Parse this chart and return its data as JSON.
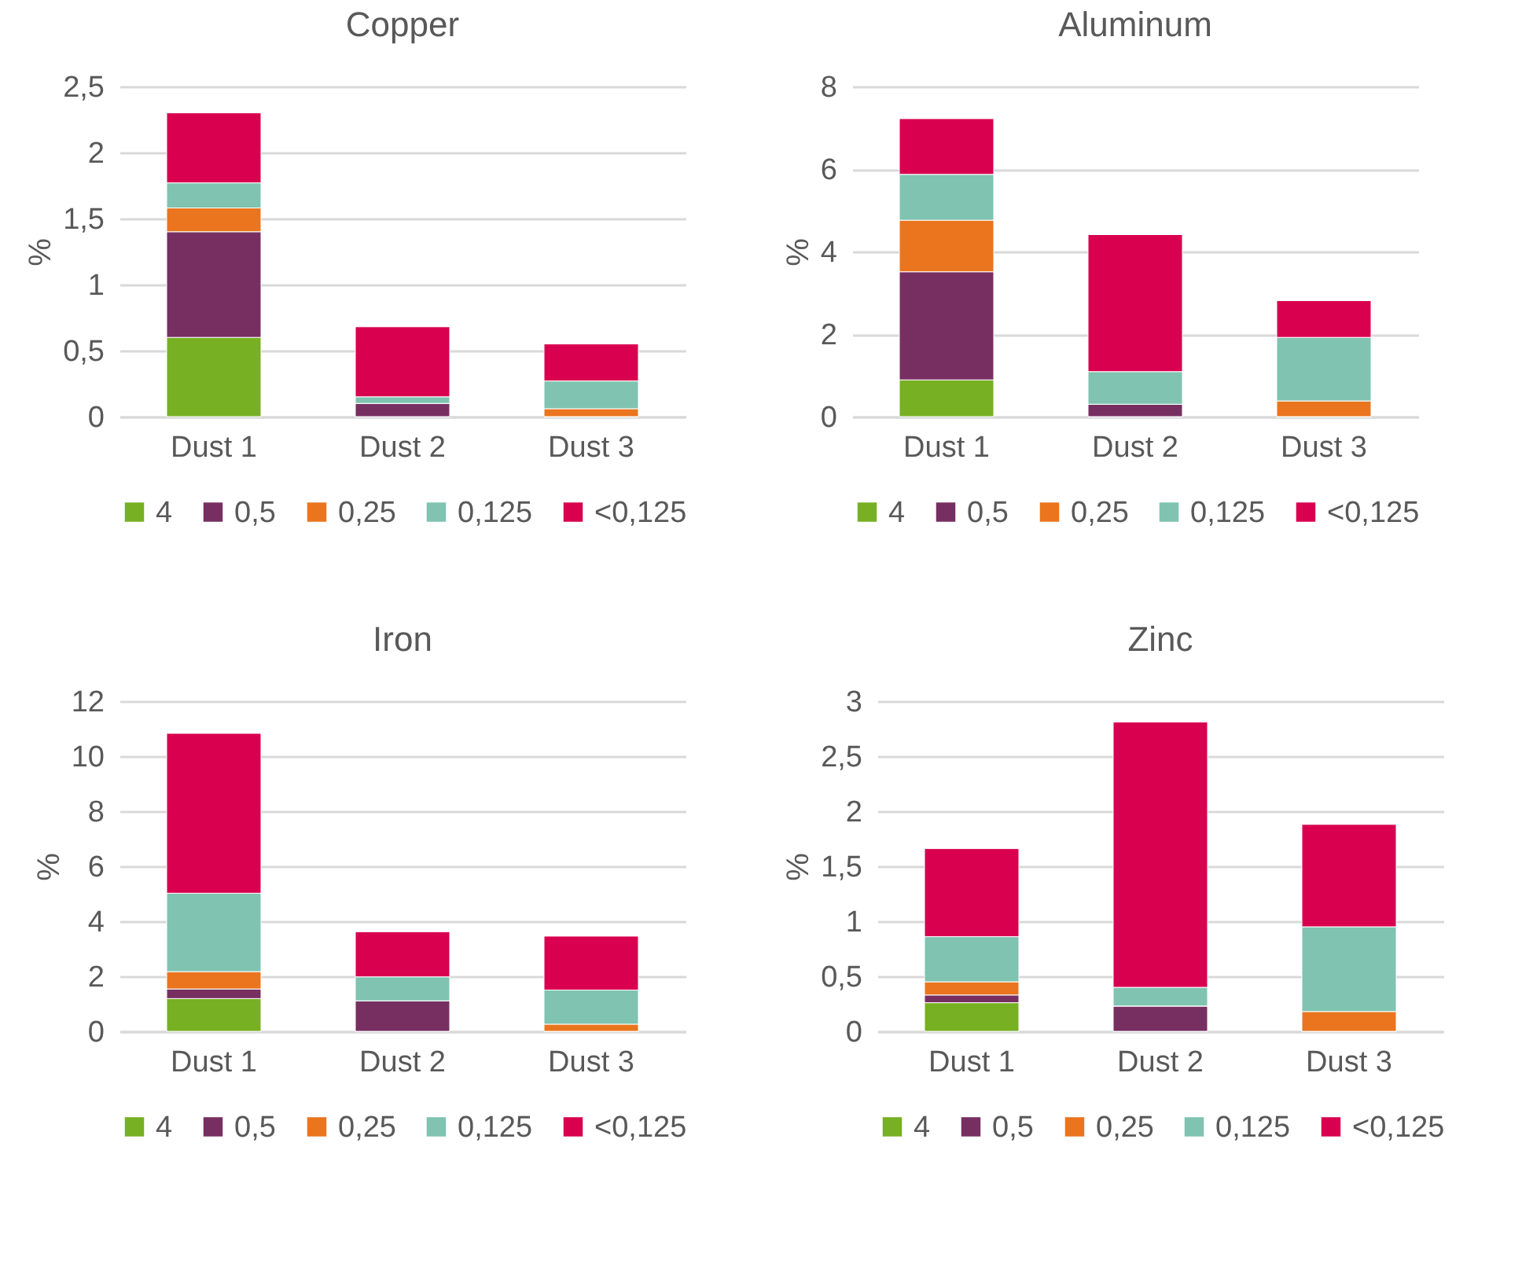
{
  "chart_data": [
    {
      "type": "bar",
      "title": "Copper",
      "ylabel": "%",
      "stacked": true,
      "grid": "y",
      "legend": "bottom",
      "categories": [
        "Dust 1",
        "Dust 2",
        "Dust 3"
      ],
      "ylim": [
        0,
        2.5
      ],
      "yticks": [
        0,
        {
          "value": 0.5,
          "label": "0,5"
        },
        1,
        {
          "value": 1.5,
          "label": "1,5"
        },
        2,
        {
          "value": 2.5,
          "label": "2,5"
        }
      ],
      "series": [
        {
          "name": "4",
          "color": "#77b022",
          "values": [
            0.6,
            0,
            0
          ]
        },
        {
          "name": "0,5",
          "color": "#772f61",
          "values": [
            0.8,
            0.1,
            0
          ]
        },
        {
          "name": "0,25",
          "color": "#ea751e",
          "values": [
            0.18,
            0,
            0.06
          ]
        },
        {
          "name": "0,125",
          "color": "#7fc3b0",
          "values": [
            0.19,
            0.05,
            0.21
          ]
        },
        {
          "name": "<0,125",
          "color": "#d9004f",
          "values": [
            0.53,
            0.53,
            0.28
          ]
        }
      ]
    },
    {
      "type": "bar",
      "title": "Aluminum",
      "ylabel": "%",
      "stacked": true,
      "grid": "y",
      "legend": "bottom",
      "categories": [
        "Dust 1",
        "Dust 2",
        "Dust 3"
      ],
      "ylim": [
        0,
        8
      ],
      "yticks": [
        0,
        2,
        4,
        6,
        8
      ],
      "series": [
        {
          "name": "4",
          "color": "#77b022",
          "values": [
            0.89,
            0,
            0
          ]
        },
        {
          "name": "0,5",
          "color": "#772f61",
          "values": [
            2.62,
            0.3,
            0
          ]
        },
        {
          "name": "0,25",
          "color": "#ea751e",
          "values": [
            1.25,
            0,
            0.38
          ]
        },
        {
          "name": "0,125",
          "color": "#7fc3b0",
          "values": [
            1.11,
            0.79,
            1.54
          ]
        },
        {
          "name": "<0,125",
          "color": "#d9004f",
          "values": [
            1.35,
            3.32,
            0.89
          ]
        }
      ]
    },
    {
      "type": "bar",
      "title": "Iron",
      "ylabel": "%",
      "stacked": true,
      "grid": "y",
      "legend": "bottom",
      "categories": [
        "Dust 1",
        "Dust 2",
        "Dust 3"
      ],
      "ylim": [
        0,
        12
      ],
      "yticks": [
        0,
        2,
        4,
        6,
        8,
        10,
        12
      ],
      "series": [
        {
          "name": "4",
          "color": "#77b022",
          "values": [
            1.19,
            0,
            0
          ]
        },
        {
          "name": "0,5",
          "color": "#772f61",
          "values": [
            0.35,
            1.11,
            0
          ]
        },
        {
          "name": "0,25",
          "color": "#ea751e",
          "values": [
            0.63,
            0,
            0.26
          ]
        },
        {
          "name": "0,125",
          "color": "#7fc3b0",
          "values": [
            2.85,
            0.87,
            1.24
          ]
        },
        {
          "name": "<0,125",
          "color": "#d9004f",
          "values": [
            5.81,
            1.64,
            1.96
          ]
        }
      ]
    },
    {
      "type": "bar",
      "title": "Zinc",
      "ylabel": "%",
      "stacked": true,
      "grid": "y",
      "legend": "bottom",
      "categories": [
        "Dust 1",
        "Dust 2",
        "Dust 3"
      ],
      "ylim": [
        0,
        3
      ],
      "yticks": [
        0,
        {
          "value": 0.5,
          "label": "0,5"
        },
        1,
        {
          "value": 1.5,
          "label": "1,5"
        },
        2,
        {
          "value": 2.5,
          "label": "2,5"
        },
        3
      ],
      "series": [
        {
          "name": "4",
          "color": "#77b022",
          "values": [
            0.26,
            0,
            0
          ]
        },
        {
          "name": "0,5",
          "color": "#772f61",
          "values": [
            0.07,
            0.23,
            0
          ]
        },
        {
          "name": "0,25",
          "color": "#ea751e",
          "values": [
            0.12,
            0,
            0.18
          ]
        },
        {
          "name": "0,125",
          "color": "#7fc3b0",
          "values": [
            0.41,
            0.17,
            0.77
          ]
        },
        {
          "name": "<0,125",
          "color": "#d9004f",
          "values": [
            0.8,
            2.41,
            0.93
          ]
        }
      ]
    }
  ]
}
